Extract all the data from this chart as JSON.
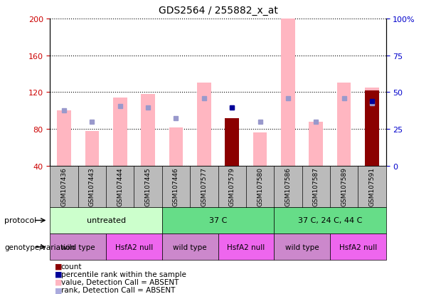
{
  "title": "GDS2564 / 255882_x_at",
  "samples": [
    "GSM107436",
    "GSM107443",
    "GSM107444",
    "GSM107445",
    "GSM107446",
    "GSM107577",
    "GSM107579",
    "GSM107580",
    "GSM107586",
    "GSM107587",
    "GSM107589",
    "GSM107591"
  ],
  "ylim_left": [
    40,
    200
  ],
  "bar_bottom": 40,
  "yticks_left": [
    40,
    80,
    120,
    160,
    200
  ],
  "yticks_right": [
    0,
    25,
    50,
    75,
    100
  ],
  "yticklabels_right": [
    "0",
    "25",
    "50",
    "75",
    "100%"
  ],
  "pink_bars": [
    100,
    78,
    114,
    118,
    82,
    130,
    92,
    76,
    200,
    88,
    130,
    125
  ],
  "blue_rank_dots": [
    100,
    88,
    105,
    103,
    92,
    113,
    103,
    88,
    113,
    88,
    113,
    108
  ],
  "count_bars": [
    null,
    null,
    null,
    null,
    null,
    null,
    92,
    null,
    null,
    null,
    null,
    122
  ],
  "dark_blue_dots": [
    null,
    null,
    null,
    null,
    null,
    null,
    103,
    null,
    null,
    null,
    null,
    110
  ],
  "count_bar_color": "#8B0000",
  "pink_bar_color": "#FFB6C1",
  "blue_rank_dot_color": "#9999CC",
  "dark_blue_dot_color": "#000099",
  "left_axis_color": "#CC0000",
  "right_axis_color": "#0000CC",
  "protocol_groups": [
    {
      "label": "untreated",
      "start": 0,
      "end": 4,
      "color": "#CCFFCC"
    },
    {
      "label": "37 C",
      "start": 4,
      "end": 8,
      "color": "#66DD88"
    },
    {
      "label": "37 C, 24 C, 44 C",
      "start": 8,
      "end": 12,
      "color": "#66DD88"
    }
  ],
  "geno_groups": [
    {
      "label": "wild type",
      "start": 0,
      "end": 2,
      "color": "#CC88CC"
    },
    {
      "label": "HsfA2 null",
      "start": 2,
      "end": 4,
      "color": "#EE66EE"
    },
    {
      "label": "wild type",
      "start": 4,
      "end": 6,
      "color": "#CC88CC"
    },
    {
      "label": "HsfA2 null",
      "start": 6,
      "end": 8,
      "color": "#EE66EE"
    },
    {
      "label": "wild type",
      "start": 8,
      "end": 10,
      "color": "#CC88CC"
    },
    {
      "label": "HsfA2 null",
      "start": 10,
      "end": 12,
      "color": "#EE66EE"
    }
  ],
  "gray_header_color": "#BBBBBB",
  "legend_colors": [
    "#8B0000",
    "#000099",
    "#FFB6C1",
    "#AAAADD"
  ],
  "legend_labels": [
    "count",
    "percentile rank within the sample",
    "value, Detection Call = ABSENT",
    "rank, Detection Call = ABSENT"
  ]
}
